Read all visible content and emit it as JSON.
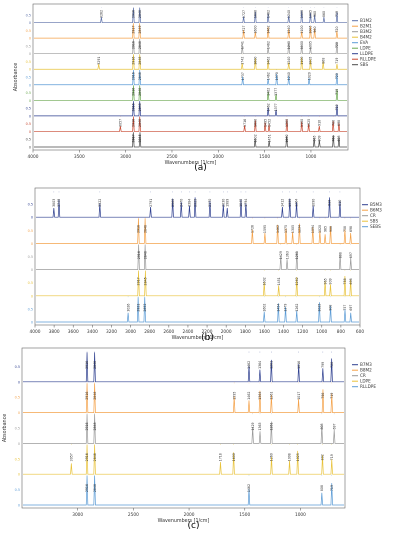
{
  "chart_data": [
    {
      "type": "line",
      "panel_label": "(a)",
      "xlabel": "Wavenumbers [1/cm]",
      "ylabel": "Absorbance",
      "xlim": [
        4000,
        600
      ],
      "xticks": [
        4000,
        3500,
        3000,
        2500,
        2000,
        1500,
        1000
      ],
      "series": [
        {
          "name": "B1M2",
          "color": "#5b6fa8",
          "peaks": [
            3262,
            2916,
            2848,
            1727,
            1600,
            1462,
            1240,
            1100,
            1005,
            960,
            860,
            719
          ]
        },
        {
          "name": "B2M1",
          "color": "#f4a24a",
          "peaks": [
            2917,
            2849,
            1727,
            1600,
            1462,
            1240,
            1100,
            1005,
            960,
            720
          ]
        },
        {
          "name": "B3M2",
          "color": "#9a9a9a",
          "peaks": [
            2916,
            2848,
            1741,
            1462,
            1240,
            1100,
            1005,
            720
          ]
        },
        {
          "name": "B4M2",
          "color": "#e8c23a",
          "peaks": [
            3291,
            2916,
            2848,
            1742,
            1600,
            1462,
            1240,
            1100,
            1005,
            868,
            719
          ]
        },
        {
          "name": "EVA",
          "color": "#5b9bd5",
          "peaks": [
            2916,
            2848,
            1737,
            1462,
            1370,
            1240,
            1020,
            720
          ]
        },
        {
          "name": "LDPE",
          "color": "#6aa84f",
          "peaks": [
            2916,
            2848,
            1462,
            1377,
            719
          ]
        },
        {
          "name": "LLDPE",
          "color": "#2e3f8f",
          "peaks": [
            2916,
            2848,
            1462,
            1377,
            719
          ]
        },
        {
          "name": "RLLDPE",
          "color": "#c8472f",
          "peaks": [
            3057,
            2916,
            2848,
            1716,
            1600,
            1495,
            1452,
            1260,
            1100,
            1025,
            910,
            760,
            698
          ]
        },
        {
          "name": "SBS",
          "color": "#4a4a4a",
          "peaks": [
            2917,
            2845,
            1602,
            1451,
            1262,
            965,
            909,
            758,
            698
          ]
        }
      ]
    },
    {
      "type": "line",
      "panel_label": "(b)",
      "xlabel": "Wavenumbers [1/cm]",
      "ylabel": "",
      "xlim": [
        4000,
        600
      ],
      "xticks": [
        4000,
        3800,
        3600,
        3400,
        3200,
        3000,
        2800,
        2600,
        2400,
        2200,
        2000,
        1800,
        1600,
        1400,
        1200,
        1000,
        800,
        600
      ],
      "series": [
        {
          "name": "B5M3",
          "color": "#2e3f8f",
          "peaks": [
            3803,
            3749,
            3322,
            2791,
            2560,
            2470,
            2384,
            2325,
            2170,
            2030,
            1989,
            1845,
            1794,
            1412,
            1335,
            1264,
            1090,
            919,
            810
          ]
        },
        {
          "name": "B6M3",
          "color": "#f4a24a",
          "peaks": [
            2918,
            2848,
            1726,
            1595,
            1462,
            1375,
            1305,
            1234,
            1094,
            1020,
            965,
            908,
            758,
            698
          ]
        },
        {
          "name": "CR",
          "color": "#9a9a9a",
          "peaks": [
            2916,
            2848,
            1429,
            1363,
            1261,
            808,
            697
          ]
        },
        {
          "name": "SBS",
          "color": "#e8c23a",
          "peaks": [
            2917,
            2845,
            1602,
            1451,
            1262,
            965,
            909,
            758,
            698
          ]
        },
        {
          "name": "SEBS",
          "color": "#5b9bd5",
          "peaks": [
            3026,
            2921,
            2852,
            1602,
            1454,
            1379,
            1262,
            1025,
            908,
            757,
            697
          ]
        }
      ]
    },
    {
      "type": "line",
      "panel_label": "(c)",
      "xlabel": "Wavenumbers [1/cm]",
      "ylabel": "Absorbance",
      "xlim": [
        3500,
        600
      ],
      "xticks": [
        3000,
        2500,
        2000,
        1500,
        1000
      ],
      "series": [
        {
          "name": "B7M3",
          "color": "#2e3f8f",
          "peaks": [
            2916,
            2848,
            1462,
            1364,
            1261,
            1016,
            799,
            720
          ]
        },
        {
          "name": "B8M2",
          "color": "#f4a24a",
          "peaks": [
            2916,
            2848,
            1595,
            1462,
            1364,
            1261,
            1017,
            798,
            719
          ]
        },
        {
          "name": "CR",
          "color": "#9a9a9a",
          "peaks": [
            2916,
            2848,
            1429,
            1363,
            1261,
            808,
            697
          ]
        },
        {
          "name": "LDPE",
          "color": "#e8c23a",
          "peaks": [
            3057,
            2916,
            2848,
            1718,
            1600,
            1260,
            1098,
            1025,
            802,
            719
          ]
        },
        {
          "name": "RLLDPE",
          "color": "#5b9bd5",
          "peaks": [
            2916,
            2848,
            1462,
            808,
            719
          ]
        }
      ]
    }
  ]
}
